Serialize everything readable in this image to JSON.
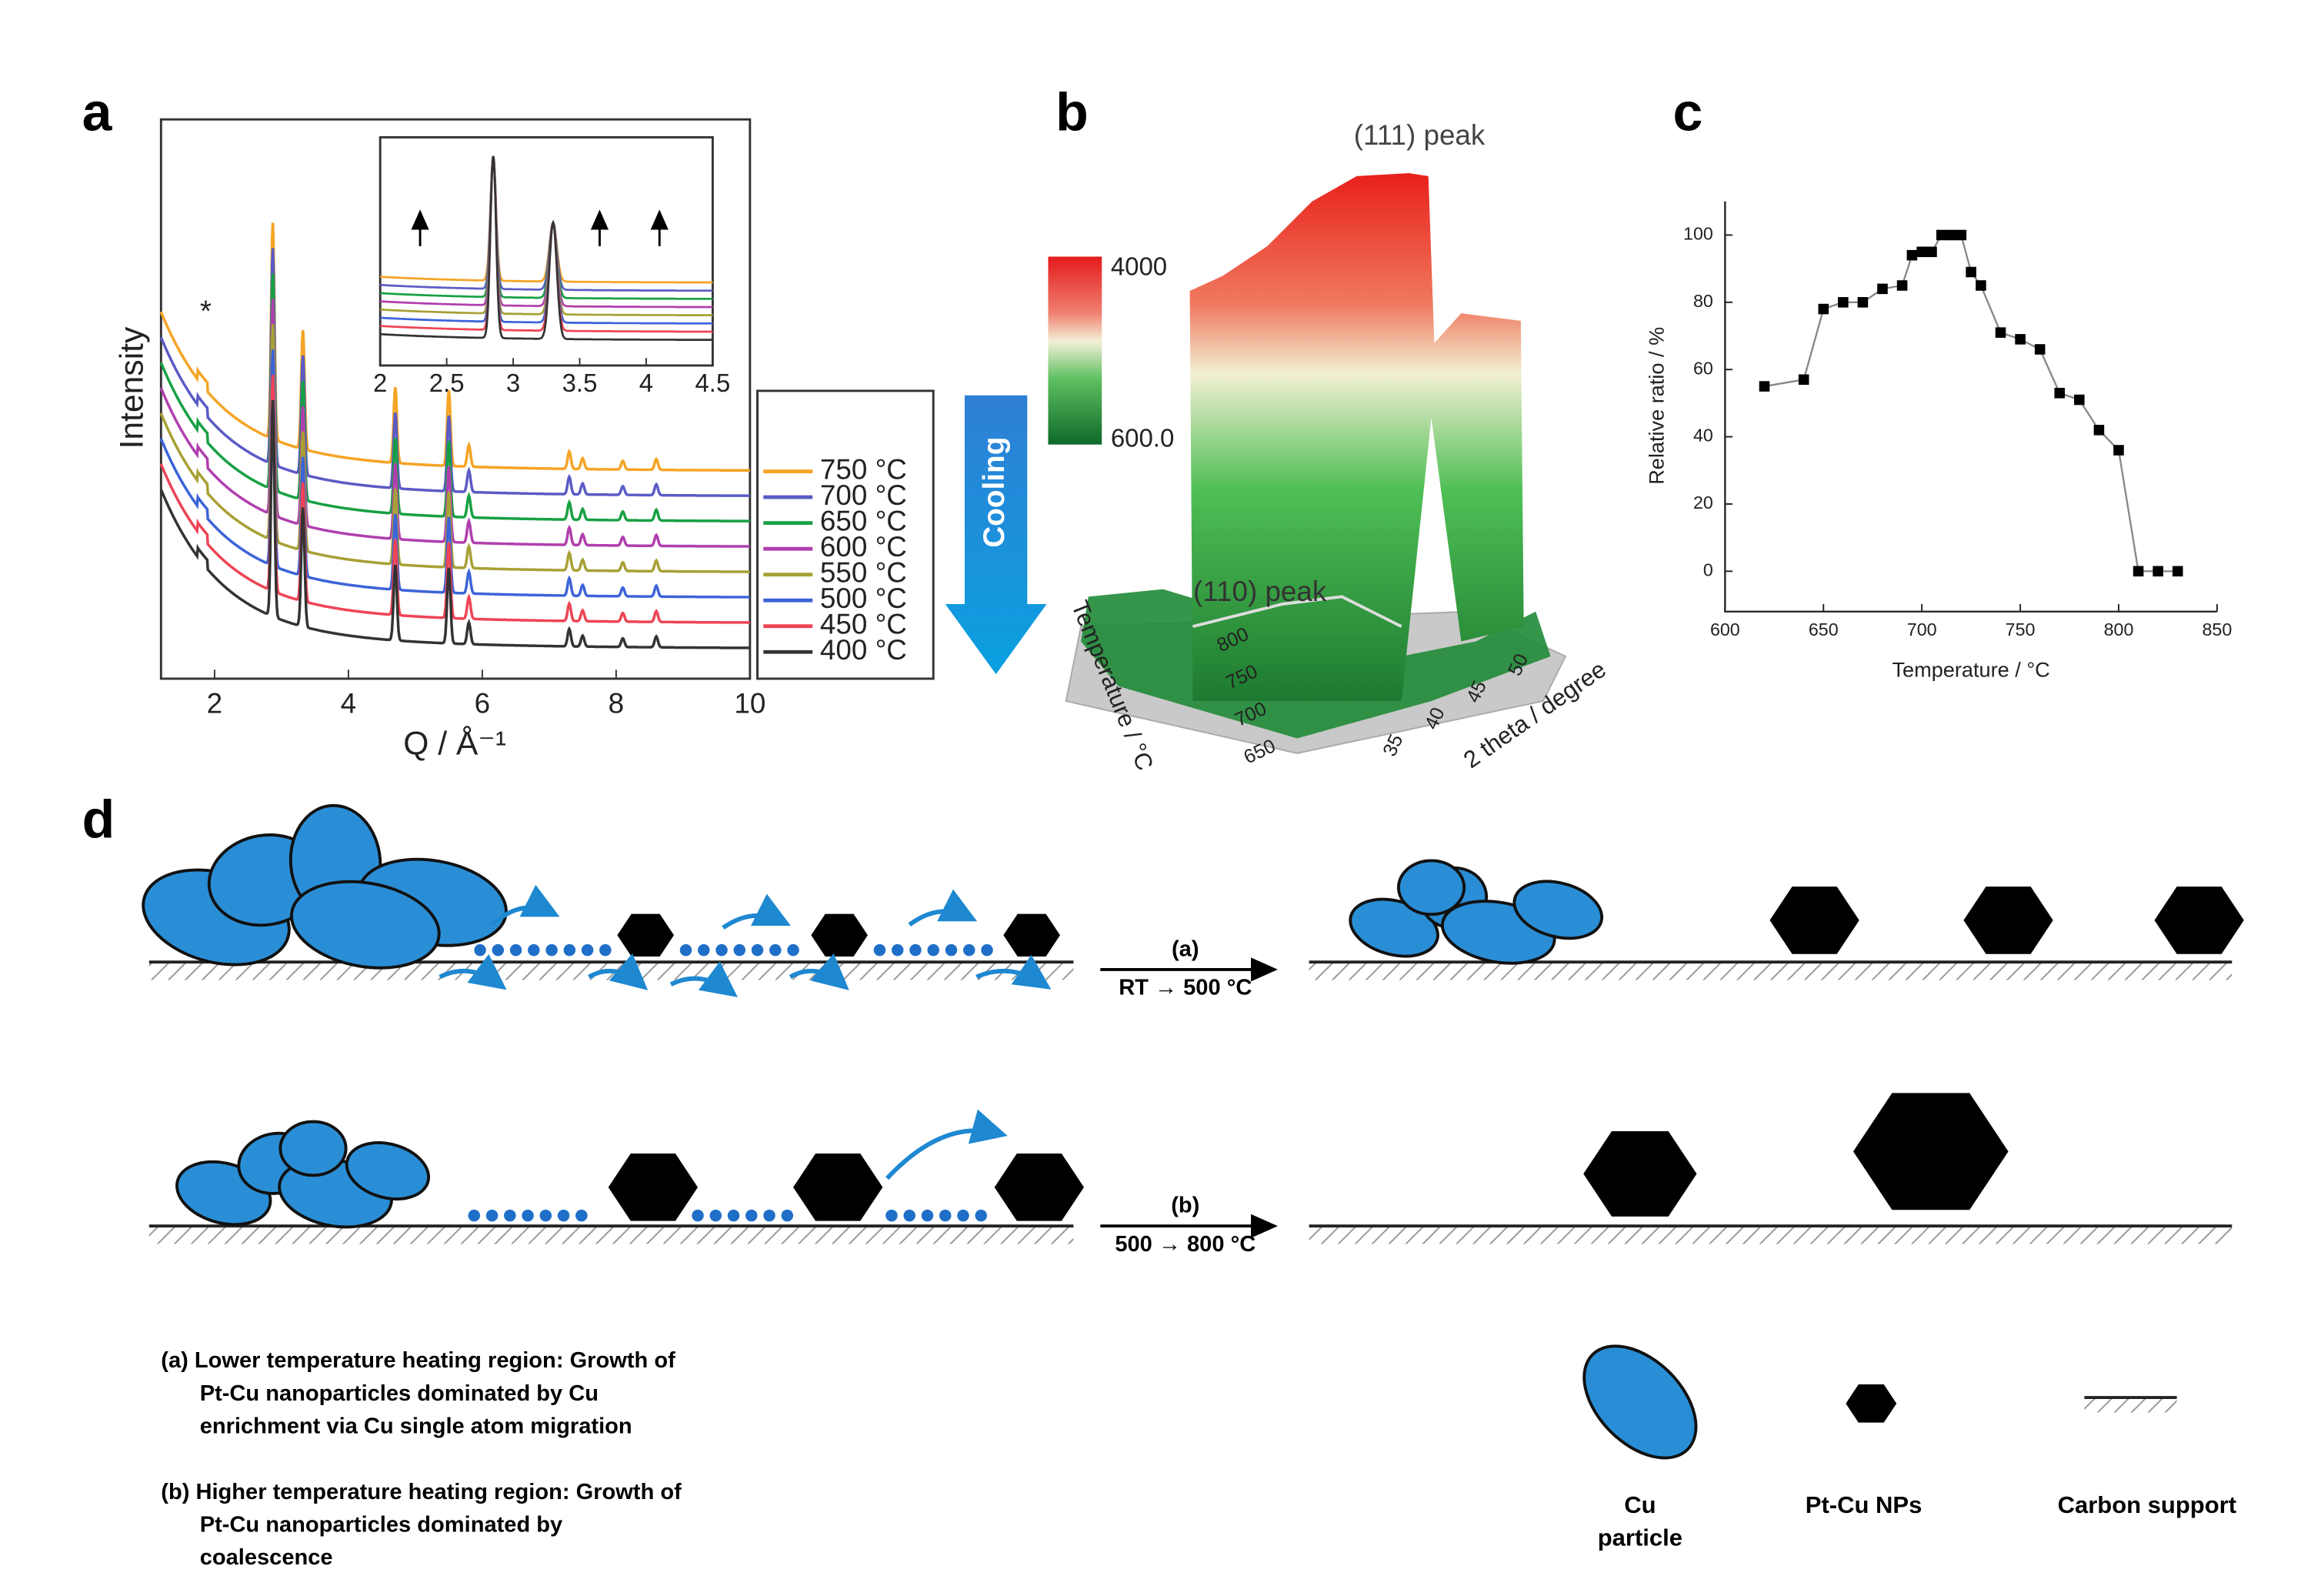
{
  "chart_data": [
    {
      "type": "line",
      "panel": "a",
      "ylabel": "Intensity",
      "xlabel": "Q / Å⁻¹",
      "annotation": "*",
      "arrow_label": "Cooling",
      "xlim": [
        1.2,
        10
      ],
      "xticks": [
        2,
        4,
        6,
        8,
        10
      ],
      "series": [
        {
          "name": "750 °C",
          "color": "#f5a425"
        },
        {
          "name": "700 °C",
          "color": "#5b5bc6"
        },
        {
          "name": "650 °C",
          "color": "#17a043"
        },
        {
          "name": "600 °C",
          "color": "#b03fae"
        },
        {
          "name": "550 °C",
          "color": "#a7a035"
        },
        {
          "name": "500 °C",
          "color": "#3c63d8"
        },
        {
          "name": "450 °C",
          "color": "#ee4455"
        },
        {
          "name": "400 °C",
          "color": "#333333"
        }
      ],
      "peak_q": [
        2.87,
        3.32,
        4.7,
        5.5,
        5.8,
        7.3,
        7.5,
        8.1,
        8.6
      ],
      "peak_height": [
        1,
        0.55,
        0.35,
        0.35,
        0.1,
        0.08,
        0.05,
        0.04,
        0.05
      ],
      "inset": {
        "xlim": [
          2,
          4.5
        ],
        "xticks": [
          2,
          2.5,
          3,
          3.5,
          4,
          4.5
        ],
        "arrows": [
          2.3,
          3.65,
          4.1
        ]
      }
    },
    {
      "type": "surface",
      "panel": "b",
      "annotations": [
        "(111) peak",
        "(110) peak"
      ],
      "colorbar_ticks": [
        4000,
        {
          "value": 600,
          "label": "600.0"
        }
      ],
      "ylabel": "Temperature / °C",
      "yticks": [
        650,
        700,
        750,
        800
      ],
      "xlabel": "2 theta / degree",
      "xticks": [
        35,
        40,
        45,
        50
      ]
    },
    {
      "type": "scatter",
      "panel": "c",
      "xlabel": "Temperature / °C",
      "ylabel": "Relative ratio / %",
      "color": "#000000",
      "x": [
        620,
        640,
        650,
        660,
        670,
        680,
        690,
        695,
        700,
        705,
        710,
        715,
        720,
        725,
        730,
        740,
        750,
        760,
        770,
        780,
        790,
        800,
        810,
        820,
        830
      ],
      "values": [
        55,
        57,
        78,
        80,
        80,
        84,
        85,
        94,
        95,
        95,
        100,
        100,
        100,
        89,
        85,
        71,
        69,
        66,
        53,
        51,
        42,
        36,
        0,
        0,
        0
      ],
      "xlim": [
        600,
        850
      ],
      "xticks": [
        600,
        650,
        700,
        750,
        800,
        850
      ],
      "ylim": [
        -12,
        110
      ],
      "yticks": [
        0,
        20,
        40,
        60,
        80,
        100
      ]
    }
  ],
  "diagram": {
    "panel": "d",
    "steps": [
      {
        "label": "(a)",
        "range": "RT → 500 °C"
      },
      {
        "label": "(b)",
        "range": "500 → 800 °C"
      }
    ],
    "captions": [
      [
        "(a) Lower temperature heating region: Growth of",
        "Pt-Cu nanoparticles dominated by Cu",
        "enrichment via Cu single atom migration"
      ],
      [
        "(b) Higher temperature heating region: Growth of",
        "Pt-Cu nanoparticles dominated by",
        "coalescence"
      ]
    ],
    "legend": [
      [
        "Cu",
        "particle"
      ],
      [
        "Pt-Cu NPs"
      ],
      [
        "Carbon support"
      ]
    ]
  }
}
